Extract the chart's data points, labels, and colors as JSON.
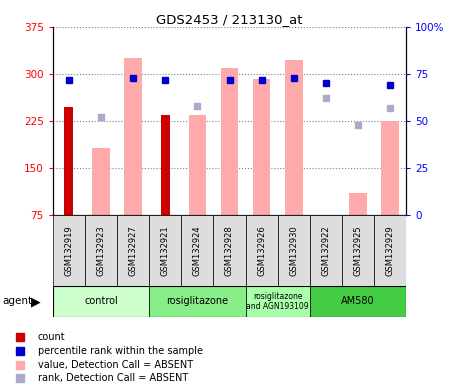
{
  "title": "GDS2453 / 213130_at",
  "samples": [
    "GSM132919",
    "GSM132923",
    "GSM132927",
    "GSM132921",
    "GSM132924",
    "GSM132928",
    "GSM132926",
    "GSM132930",
    "GSM132922",
    "GSM132925",
    "GSM132929"
  ],
  "count_values": [
    248,
    null,
    null,
    235,
    null,
    null,
    null,
    null,
    null,
    null,
    null
  ],
  "pink_bar_values": [
    null,
    182,
    325,
    null,
    235,
    310,
    292,
    322,
    null,
    110,
    225
  ],
  "blue_square_values": [
    72,
    null,
    73,
    72,
    null,
    72,
    72,
    73,
    70,
    null,
    69
  ],
  "lavender_square_values": [
    null,
    52,
    null,
    null,
    58,
    null,
    null,
    null,
    62,
    48,
    57
  ],
  "ylim_left": [
    75,
    375
  ],
  "ylim_right": [
    0,
    100
  ],
  "yticks_left": [
    75,
    150,
    225,
    300,
    375
  ],
  "yticks_right": [
    0,
    25,
    50,
    75,
    100
  ],
  "groups": [
    {
      "label": "control",
      "start": 0,
      "end": 2,
      "color": "#ccffcc"
    },
    {
      "label": "rosiglitazone",
      "start": 3,
      "end": 5,
      "color": "#99ee99"
    },
    {
      "label": "rosiglitazone\nand AGN193109",
      "start": 6,
      "end": 7,
      "color": "#bbffbb"
    },
    {
      "label": "AM580",
      "start": 8,
      "end": 10,
      "color": "#44cc44"
    }
  ],
  "count_color": "#cc0000",
  "pink_color": "#ffaaaa",
  "blue_color": "#0000cc",
  "lavender_color": "#aaaacc",
  "legend_items": [
    {
      "label": "count",
      "color": "#cc0000"
    },
    {
      "label": "percentile rank within the sample",
      "color": "#0000cc"
    },
    {
      "label": "value, Detection Call = ABSENT",
      "color": "#ffaaaa"
    },
    {
      "label": "rank, Detection Call = ABSENT",
      "color": "#aaaacc"
    }
  ]
}
